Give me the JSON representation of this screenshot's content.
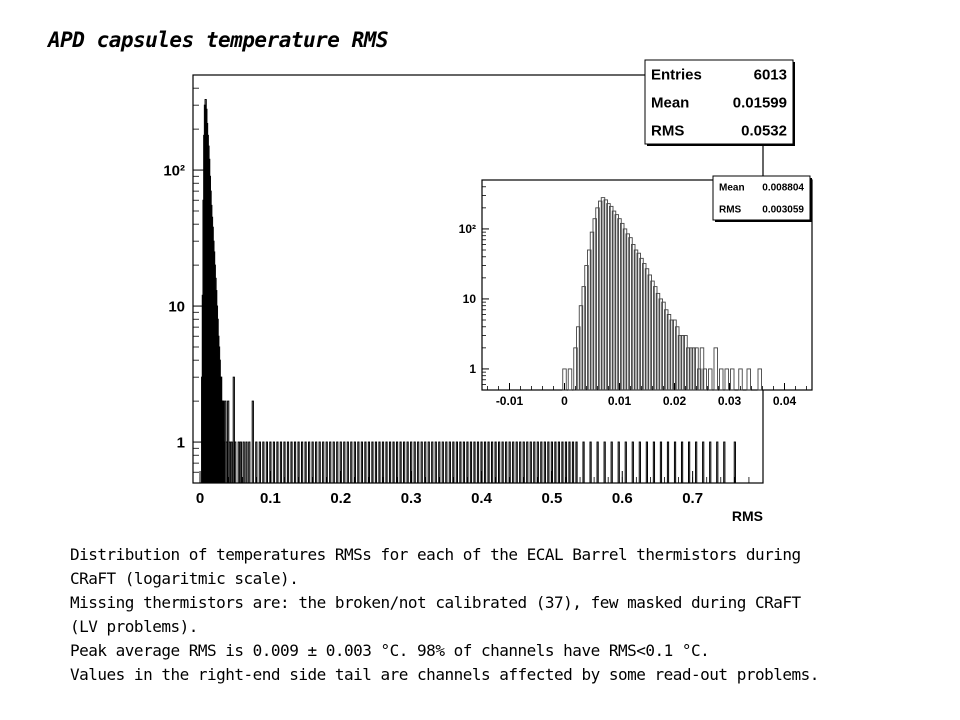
{
  "slide_title": "APD capsules temperature RMS",
  "caption": [
    "Distribution of temperatures RMSs for  each of the ECAL Barrel thermistors during",
    "CRaFT  (logaritmic  scale).",
    "Missing thermistors are: the broken/not calibrated (37),  few masked during CRaFT",
    "(LV problems).",
    "Peak average RMS is 0.009 ± 0.003 °C.  98% of channels have  RMS<0.1 °C.",
    "Values in the right-end side tail  are channels affected by some read-out problems."
  ],
  "chart_data": [
    {
      "type": "histogram",
      "scale": "log-y",
      "xlabel": "RMS",
      "ylabel": "",
      "xlim": [
        -0.01,
        0.8
      ],
      "ylim": [
        0.5,
        500
      ],
      "x_ticks": [
        0,
        0.1,
        0.2,
        0.3,
        0.4,
        0.5,
        0.6,
        0.7
      ],
      "x_tick_labels": [
        "0",
        "0.1",
        "0.2",
        "0.3",
        "0.4",
        "0.5",
        "0.6",
        "0.7"
      ],
      "y_ticks": [
        1,
        10,
        100
      ],
      "y_tick_labels": [
        "1",
        "10",
        "10²"
      ],
      "stats": [
        {
          "label": "Entries",
          "value": "6013"
        },
        {
          "label": "Mean",
          "value": "0.01599"
        },
        {
          "label": "RMS",
          "value": "0.0532"
        }
      ],
      "bins": [
        [
          0.003,
          3
        ],
        [
          0.004,
          12
        ],
        [
          0.005,
          60
        ],
        [
          0.006,
          180
        ],
        [
          0.007,
          300
        ],
        [
          0.008,
          330
        ],
        [
          0.009,
          280
        ],
        [
          0.01,
          220
        ],
        [
          0.011,
          180
        ],
        [
          0.012,
          150
        ],
        [
          0.013,
          120
        ],
        [
          0.014,
          90
        ],
        [
          0.015,
          70
        ],
        [
          0.016,
          55
        ],
        [
          0.017,
          45
        ],
        [
          0.018,
          38
        ],
        [
          0.019,
          30
        ],
        [
          0.02,
          25
        ],
        [
          0.021,
          20
        ],
        [
          0.022,
          16
        ],
        [
          0.023,
          13
        ],
        [
          0.024,
          10
        ],
        [
          0.025,
          8
        ],
        [
          0.026,
          6
        ],
        [
          0.027,
          5
        ],
        [
          0.028,
          4
        ],
        [
          0.029,
          3
        ],
        [
          0.03,
          3
        ],
        [
          0.031,
          2
        ],
        [
          0.032,
          2
        ],
        [
          0.033,
          2
        ],
        [
          0.034,
          1
        ],
        [
          0.036,
          2
        ],
        [
          0.038,
          1
        ],
        [
          0.04,
          2
        ],
        [
          0.042,
          1
        ],
        [
          0.045,
          1
        ],
        [
          0.048,
          3
        ],
        [
          0.05,
          1
        ],
        [
          0.055,
          1
        ],
        [
          0.058,
          1
        ],
        [
          0.062,
          1
        ],
        [
          0.066,
          1
        ],
        [
          0.07,
          1
        ],
        [
          0.075,
          2
        ],
        [
          0.08,
          1
        ],
        [
          0.085,
          1
        ],
        [
          0.09,
          1
        ],
        [
          0.095,
          1
        ],
        [
          0.1,
          1
        ],
        [
          0.105,
          1
        ],
        [
          0.11,
          1
        ],
        [
          0.115,
          1
        ],
        [
          0.12,
          1
        ],
        [
          0.125,
          1
        ],
        [
          0.13,
          1
        ],
        [
          0.135,
          1
        ],
        [
          0.14,
          1
        ],
        [
          0.145,
          1
        ],
        [
          0.15,
          1
        ],
        [
          0.155,
          1
        ],
        [
          0.16,
          1
        ],
        [
          0.165,
          1
        ],
        [
          0.17,
          1
        ],
        [
          0.175,
          1
        ],
        [
          0.18,
          1
        ],
        [
          0.185,
          1
        ],
        [
          0.19,
          1
        ],
        [
          0.195,
          1
        ],
        [
          0.2,
          1
        ],
        [
          0.205,
          1
        ],
        [
          0.21,
          1
        ],
        [
          0.215,
          1
        ],
        [
          0.22,
          1
        ],
        [
          0.225,
          1
        ],
        [
          0.23,
          1
        ],
        [
          0.235,
          1
        ],
        [
          0.24,
          1
        ],
        [
          0.245,
          1
        ],
        [
          0.25,
          1
        ],
        [
          0.255,
          1
        ],
        [
          0.26,
          1
        ],
        [
          0.265,
          1
        ],
        [
          0.27,
          1
        ],
        [
          0.275,
          1
        ],
        [
          0.28,
          1
        ],
        [
          0.285,
          1
        ],
        [
          0.29,
          1
        ],
        [
          0.295,
          1
        ],
        [
          0.3,
          1
        ],
        [
          0.305,
          1
        ],
        [
          0.31,
          1
        ],
        [
          0.315,
          1
        ],
        [
          0.32,
          1
        ],
        [
          0.325,
          1
        ],
        [
          0.33,
          1
        ],
        [
          0.335,
          1
        ],
        [
          0.34,
          1
        ],
        [
          0.345,
          1
        ],
        [
          0.35,
          1
        ],
        [
          0.355,
          1
        ],
        [
          0.36,
          1
        ],
        [
          0.365,
          1
        ],
        [
          0.37,
          1
        ],
        [
          0.375,
          1
        ],
        [
          0.38,
          1
        ],
        [
          0.385,
          1
        ],
        [
          0.39,
          1
        ],
        [
          0.395,
          1
        ],
        [
          0.4,
          1
        ],
        [
          0.405,
          1
        ],
        [
          0.41,
          1
        ],
        [
          0.415,
          1
        ],
        [
          0.42,
          1
        ],
        [
          0.425,
          1
        ],
        [
          0.43,
          1
        ],
        [
          0.435,
          1
        ],
        [
          0.44,
          1
        ],
        [
          0.445,
          1
        ],
        [
          0.45,
          1
        ],
        [
          0.455,
          1
        ],
        [
          0.46,
          1
        ],
        [
          0.465,
          1
        ],
        [
          0.47,
          1
        ],
        [
          0.475,
          1
        ],
        [
          0.48,
          1
        ],
        [
          0.485,
          1
        ],
        [
          0.49,
          1
        ],
        [
          0.495,
          1
        ],
        [
          0.5,
          1
        ],
        [
          0.505,
          1
        ],
        [
          0.51,
          1
        ],
        [
          0.515,
          1
        ],
        [
          0.52,
          1
        ],
        [
          0.525,
          1
        ],
        [
          0.53,
          1
        ],
        [
          0.535,
          1
        ],
        [
          0.545,
          1
        ],
        [
          0.555,
          1
        ],
        [
          0.565,
          1
        ],
        [
          0.575,
          1
        ],
        [
          0.585,
          1
        ],
        [
          0.595,
          1
        ],
        [
          0.605,
          1
        ],
        [
          0.615,
          1
        ],
        [
          0.625,
          1
        ],
        [
          0.635,
          1
        ],
        [
          0.645,
          1
        ],
        [
          0.655,
          1
        ],
        [
          0.665,
          1
        ],
        [
          0.675,
          1
        ],
        [
          0.685,
          1
        ],
        [
          0.695,
          1
        ],
        [
          0.705,
          1
        ],
        [
          0.715,
          1
        ],
        [
          0.725,
          1
        ],
        [
          0.735,
          1
        ],
        [
          0.745,
          1
        ],
        [
          0.76,
          1
        ]
      ]
    },
    {
      "type": "histogram",
      "scale": "log-y",
      "xlabel": "",
      "ylabel": "",
      "xlim": [
        -0.015,
        0.045
      ],
      "ylim": [
        0.5,
        500
      ],
      "x_ticks": [
        -0.01,
        0,
        0.01,
        0.02,
        0.03,
        0.04
      ],
      "x_tick_labels": [
        "-0.01",
        "0",
        "0.01",
        "0.02",
        "0.03",
        "0.04"
      ],
      "y_ticks": [
        1,
        10,
        100
      ],
      "y_tick_labels": [
        "1",
        "10",
        "10²"
      ],
      "stats": [
        {
          "label": "Mean",
          "value": "0.008804"
        },
        {
          "label": "RMS",
          "value": "0.003059"
        }
      ],
      "bins": [
        [
          0.0,
          1
        ],
        [
          0.001,
          1
        ],
        [
          0.002,
          2
        ],
        [
          0.0025,
          4
        ],
        [
          0.003,
          8
        ],
        [
          0.0035,
          15
        ],
        [
          0.004,
          30
        ],
        [
          0.0045,
          50
        ],
        [
          0.005,
          90
        ],
        [
          0.0055,
          140
        ],
        [
          0.006,
          200
        ],
        [
          0.0065,
          250
        ],
        [
          0.007,
          280
        ],
        [
          0.0075,
          260
        ],
        [
          0.008,
          230
        ],
        [
          0.0085,
          210
        ],
        [
          0.009,
          180
        ],
        [
          0.0095,
          160
        ],
        [
          0.01,
          140
        ],
        [
          0.0105,
          120
        ],
        [
          0.011,
          100
        ],
        [
          0.0115,
          85
        ],
        [
          0.012,
          75
        ],
        [
          0.0125,
          60
        ],
        [
          0.013,
          50
        ],
        [
          0.0135,
          45
        ],
        [
          0.014,
          38
        ],
        [
          0.0145,
          32
        ],
        [
          0.015,
          27
        ],
        [
          0.0155,
          22
        ],
        [
          0.016,
          18
        ],
        [
          0.0165,
          15
        ],
        [
          0.017,
          12
        ],
        [
          0.0175,
          10
        ],
        [
          0.018,
          9
        ],
        [
          0.0185,
          7
        ],
        [
          0.019,
          6
        ],
        [
          0.0195,
          5
        ],
        [
          0.02,
          5
        ],
        [
          0.0205,
          4
        ],
        [
          0.021,
          3
        ],
        [
          0.0215,
          3
        ],
        [
          0.022,
          3
        ],
        [
          0.0225,
          2
        ],
        [
          0.023,
          2
        ],
        [
          0.0235,
          2
        ],
        [
          0.024,
          2
        ],
        [
          0.0245,
          1
        ],
        [
          0.025,
          2
        ],
        [
          0.0255,
          1
        ],
        [
          0.0265,
          1
        ],
        [
          0.0275,
          2
        ],
        [
          0.0285,
          1
        ],
        [
          0.0295,
          1
        ],
        [
          0.0305,
          1
        ],
        [
          0.032,
          1
        ],
        [
          0.0335,
          1
        ],
        [
          0.0355,
          1
        ]
      ]
    }
  ]
}
